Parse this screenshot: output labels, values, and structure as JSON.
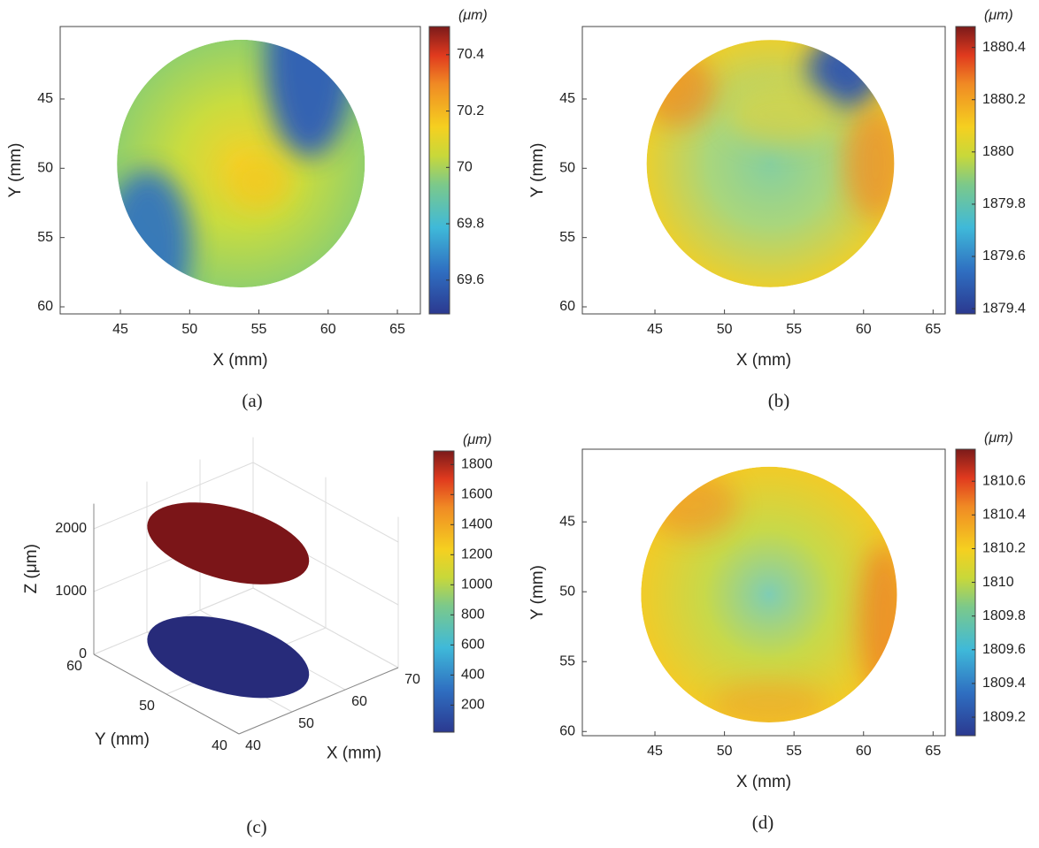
{
  "chart_data": [
    {
      "type": "heatmap",
      "caption": "(a)",
      "xlabel": "X (mm)",
      "ylabel": "Y (mm)",
      "xlim": [
        40.65,
        66.66
      ],
      "ylim": [
        39.77,
        60.51
      ],
      "xticks": [
        45,
        50,
        55,
        60,
        65
      ],
      "yticks": [
        45,
        50,
        55,
        60
      ],
      "colorbar": {
        "label": "(μm)",
        "lim": [
          69.48,
          70.5
        ],
        "ticks": [
          70.4,
          70.2,
          70,
          69.8,
          69.6
        ]
      }
    },
    {
      "type": "heatmap",
      "caption": "(b)",
      "xlabel": "X (mm)",
      "ylabel": "Y (mm)",
      "xlim": [
        39.78,
        65.87
      ],
      "ylim": [
        39.77,
        60.51
      ],
      "xticks": [
        45,
        50,
        55,
        60,
        65
      ],
      "yticks": [
        45,
        50,
        55,
        60
      ],
      "colorbar": {
        "label": "(μm)",
        "lim": [
          1879.38,
          1880.48
        ],
        "ticks": [
          1880.4,
          1880.2,
          1880,
          1879.8,
          1879.6,
          1879.4
        ]
      }
    },
    {
      "type": "surface3d",
      "caption": "(c)",
      "xlabel": "X (mm)",
      "ylabel": "Y (mm)",
      "zlabel": "Z (μm)",
      "xlim": [
        40,
        70
      ],
      "ylim": [
        40,
        60
      ],
      "zlim": [
        0,
        2400
      ],
      "xticks": [
        40,
        50,
        60,
        70
      ],
      "yticks": [
        40,
        50,
        60
      ],
      "zticks": [
        0,
        1000,
        2000
      ],
      "layers": [
        {
          "z": 1880,
          "color": "#7b1518"
        },
        {
          "z": 70,
          "color": "#272b7a"
        }
      ],
      "colorbar": {
        "label": "(μm)",
        "lim": [
          20,
          1890
        ],
        "ticks": [
          1800,
          1600,
          1400,
          1200,
          1000,
          800,
          600,
          400,
          200
        ]
      }
    },
    {
      "type": "heatmap",
      "caption": "(d)",
      "xlabel": "X (mm)",
      "ylabel": "Y (mm)",
      "xlim": [
        39.78,
        65.87
      ],
      "ylim": [
        39.8,
        60.3
      ],
      "xticks": [
        45,
        50,
        55,
        60,
        65
      ],
      "yticks": [
        45,
        50,
        55,
        60
      ],
      "colorbar": {
        "label": "(μm)",
        "lim": [
          1809.09,
          1810.79
        ],
        "ticks": [
          1810.6,
          1810.4,
          1810.2,
          1810,
          1809.8,
          1809.6,
          1809.4,
          1809.2
        ]
      }
    }
  ]
}
